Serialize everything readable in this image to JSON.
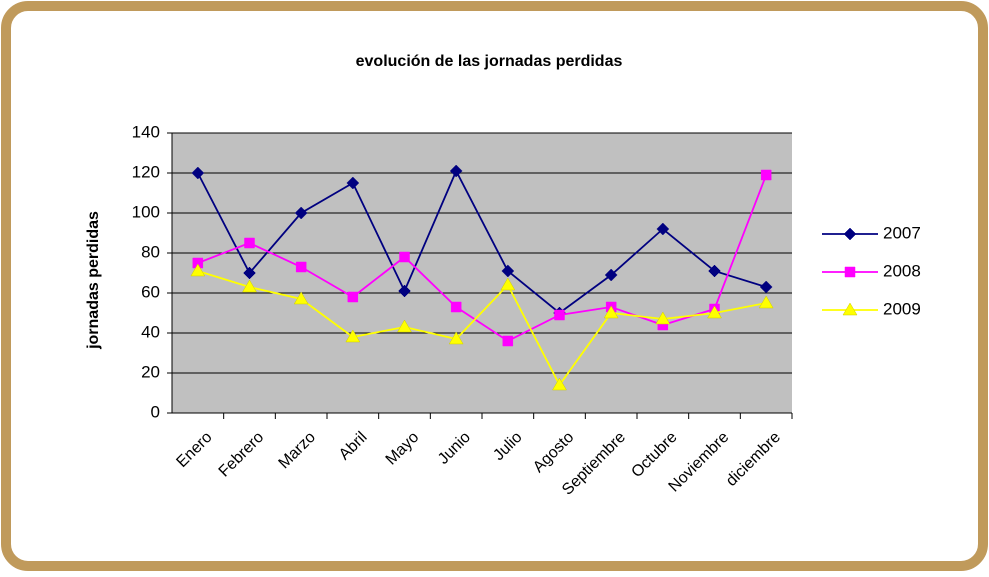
{
  "chart_data": {
    "type": "line",
    "title": "evolución de las jornadas perdidas",
    "y_label": "jornadas perdidas",
    "categories": [
      "Enero",
      "Febrero",
      "Marzo",
      "Abril",
      "Mayo",
      "Junio",
      "Julio",
      "Agosto",
      "Septiembre",
      "Octubre",
      "Noviembre",
      "diciembre"
    ],
    "series": [
      {
        "name": "2007",
        "color": "#000080",
        "marker": "diamond",
        "values": [
          120,
          70,
          100,
          115,
          61,
          121,
          71,
          50,
          69,
          92,
          71,
          63
        ]
      },
      {
        "name": "2008",
        "color": "#ff00ff",
        "marker": "square",
        "values": [
          75,
          85,
          73,
          58,
          78,
          53,
          36,
          49,
          53,
          44,
          52,
          119
        ]
      },
      {
        "name": "2009",
        "color": "#ffff00",
        "marker": "triangle",
        "values": [
          71,
          63,
          57,
          38,
          43,
          37,
          64,
          14,
          50,
          47,
          50,
          55
        ]
      }
    ],
    "ylim": [
      0,
      140
    ],
    "yticks": [
      0,
      20,
      40,
      60,
      80,
      100,
      120,
      140
    ],
    "grid": true,
    "legend": "right"
  }
}
